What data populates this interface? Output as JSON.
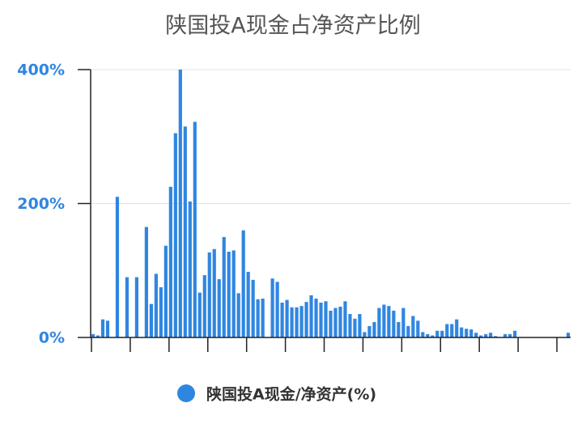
{
  "chart_data": {
    "type": "bar",
    "title": "陕国投A现金占净资产比例",
    "categories": [
      null,
      null,
      null,
      null,
      null,
      null,
      null,
      null,
      null,
      null,
      null,
      null,
      null,
      null,
      null,
      null,
      null,
      null,
      null,
      null,
      null,
      null,
      null,
      null,
      null,
      null,
      null,
      null,
      null,
      null,
      null,
      null,
      null,
      null,
      null,
      null,
      null,
      null,
      null,
      null,
      null,
      null,
      null,
      null,
      null,
      null,
      null,
      null,
      null,
      null,
      null,
      null,
      null,
      null,
      null,
      null,
      null,
      null,
      null,
      null,
      null,
      null,
      null,
      null,
      null,
      null,
      null,
      null,
      null,
      null,
      null,
      null,
      null,
      null,
      null,
      null,
      null,
      null,
      null,
      null,
      null,
      null,
      null,
      null,
      null,
      null,
      null,
      null,
      null,
      null,
      null,
      null,
      null,
      null,
      null,
      null,
      null,
      null,
      null
    ],
    "series": [
      {
        "name": "陕国投A现金/净资产(%)",
        "color": "#2f86e0",
        "values": [
          5,
          3,
          27,
          25,
          null,
          210,
          null,
          90,
          null,
          90,
          null,
          165,
          50,
          95,
          75,
          137,
          225,
          305,
          400,
          315,
          203,
          322,
          67,
          93,
          127,
          132,
          87,
          150,
          128,
          130,
          66,
          160,
          98,
          86,
          57,
          58,
          null,
          88,
          83,
          52,
          56,
          45,
          45,
          47,
          53,
          63,
          58,
          52,
          54,
          40,
          44,
          46,
          54,
          35,
          28,
          35,
          8,
          17,
          23,
          44,
          49,
          47,
          40,
          23,
          44,
          17,
          32,
          25,
          8,
          5,
          3,
          10,
          10,
          20,
          20,
          27,
          15,
          13,
          12,
          7,
          3,
          5,
          7,
          2,
          null,
          5,
          5,
          10,
          null,
          null,
          null,
          null,
          null,
          null,
          null,
          null,
          null,
          null,
          7
        ]
      }
    ],
    "ylim": [
      0,
      400
    ],
    "yticks": [
      {
        "value": 0,
        "label": "0%"
      },
      {
        "value": 200,
        "label": "200%"
      },
      {
        "value": 400,
        "label": "400%"
      }
    ],
    "grid": true,
    "legend": "bottom"
  }
}
